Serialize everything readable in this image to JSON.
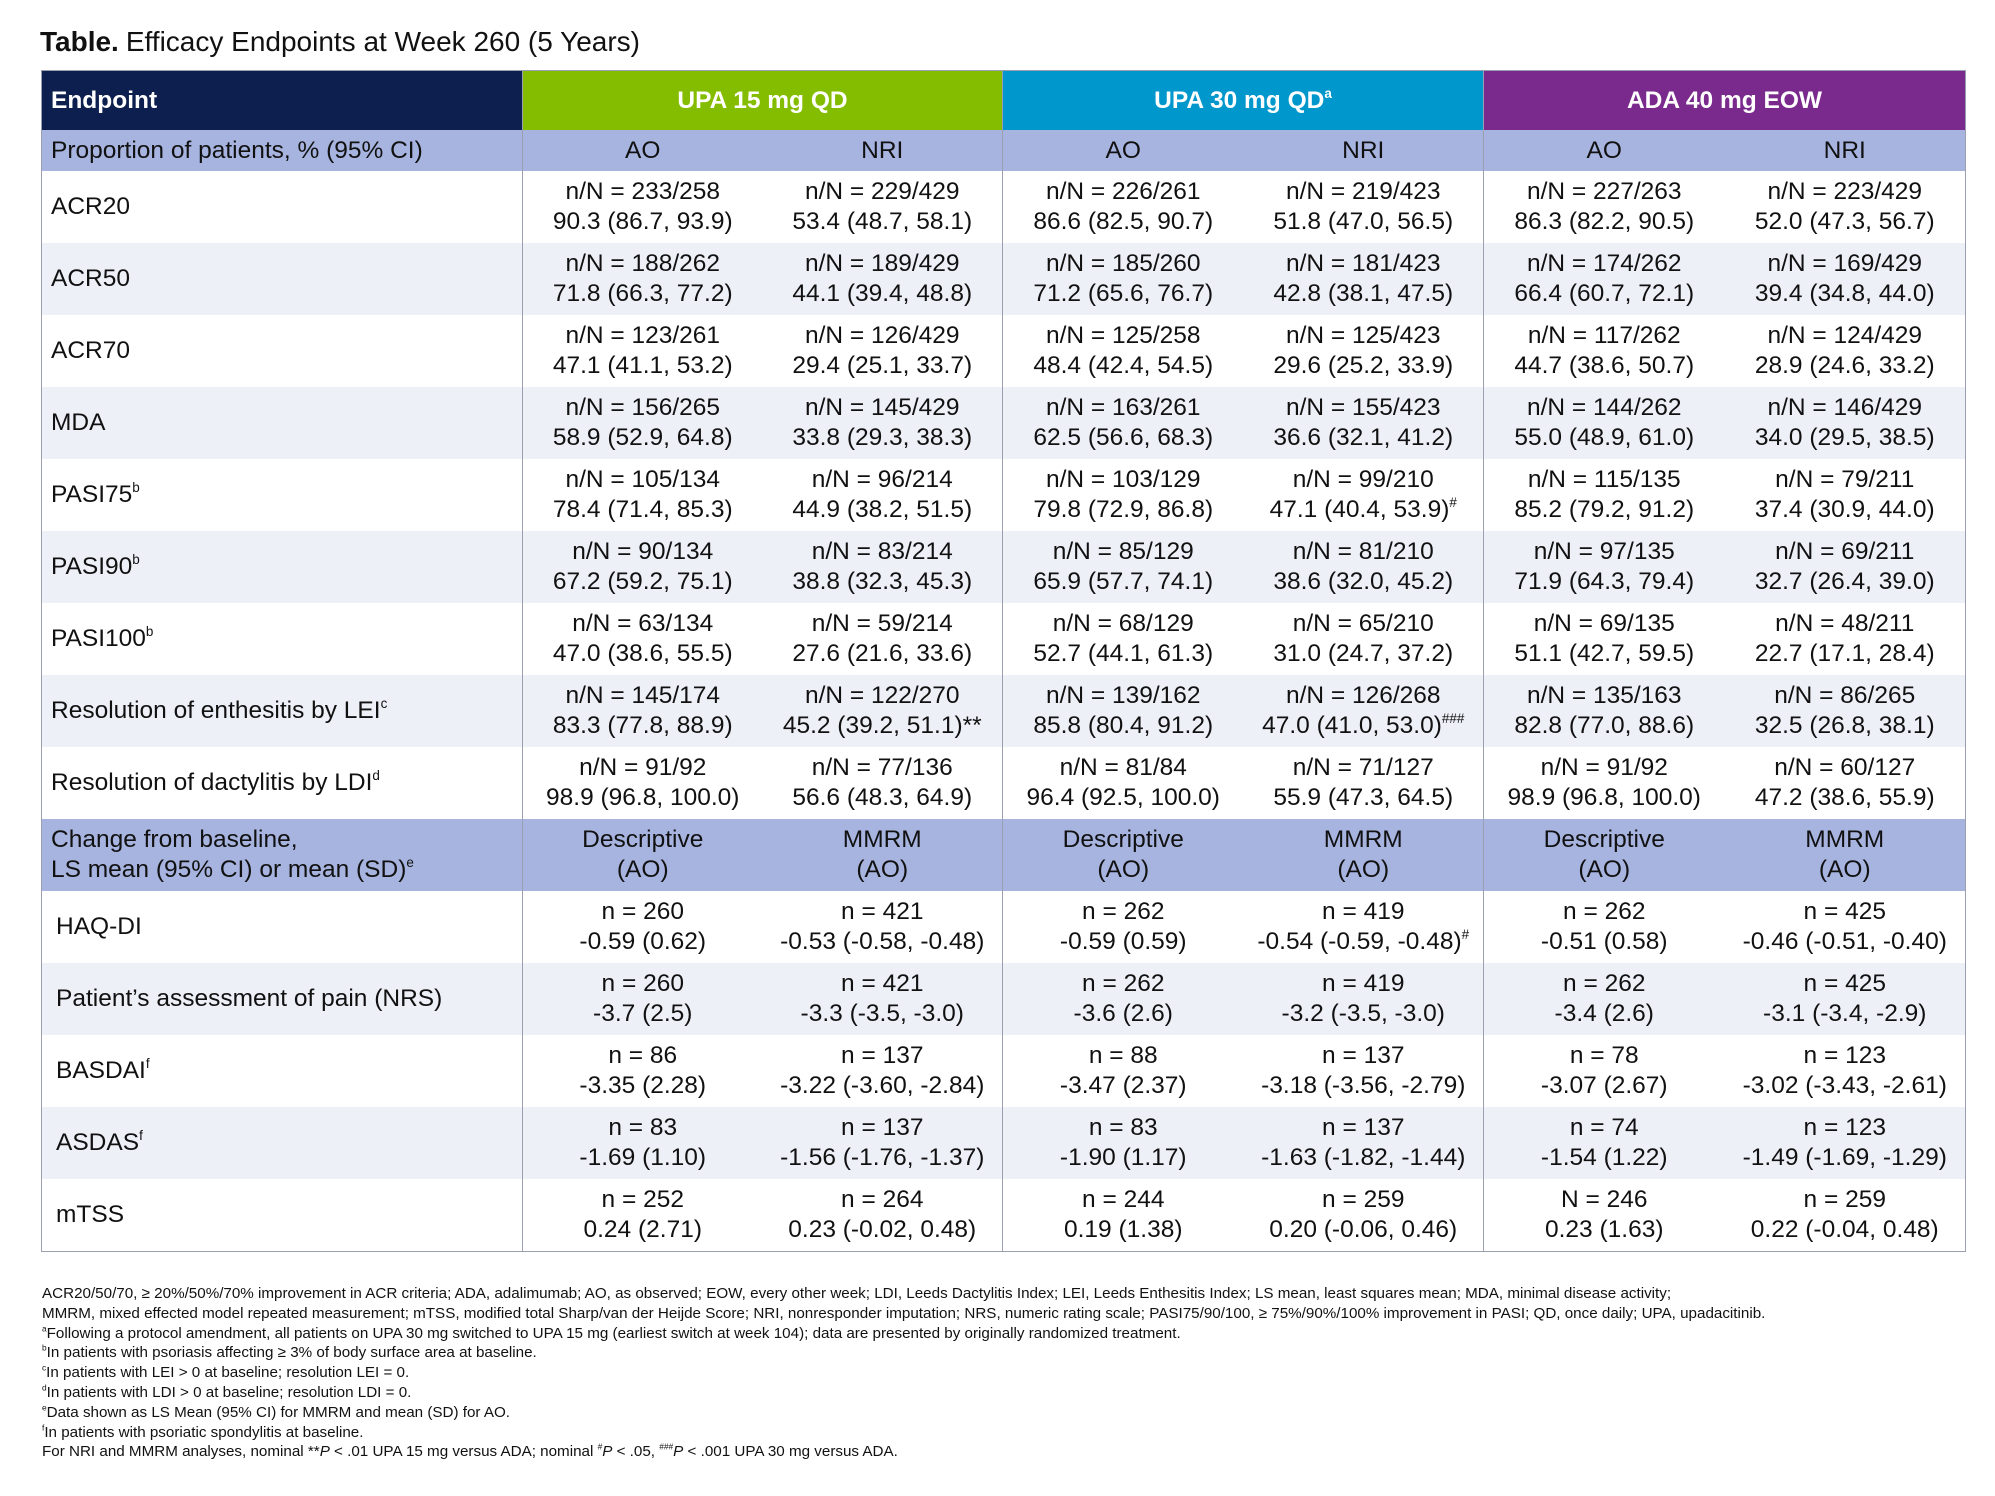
{
  "title": {
    "bold": "Table.",
    "text": "Efficacy Endpoints at Week 260 (5 Years)"
  },
  "table": {
    "header": [
      {
        "text": "Endpoint",
        "color": "#0d1f4e"
      },
      {
        "text": "UPA 15 mg QD",
        "color": "#84bd00"
      },
      {
        "text": "UPA 30 mg QD",
        "sup": "a",
        "color": "#0097cc"
      },
      {
        "text": "ADA 40 mg EOW",
        "color": "#7a2a8c"
      }
    ],
    "sections": [
      {
        "label": [
          "Proportion of patients, % (95% CI)"
        ],
        "subheads": [
          [
            "AO"
          ],
          [
            "NRI"
          ],
          [
            "AO"
          ],
          [
            "NRI"
          ],
          [
            "AO"
          ],
          [
            "NRI"
          ]
        ],
        "rows": [
          {
            "label": "ACR20",
            "cells": [
              {
                "n": "n/N = 233/258",
                "v": "90.3 (86.7, 93.9)"
              },
              {
                "n": "n/N = 229/429",
                "v": "53.4 (48.7, 58.1)"
              },
              {
                "n": "n/N = 226/261",
                "v": "86.6 (82.5, 90.7)"
              },
              {
                "n": "n/N = 219/423",
                "v": "51.8 (47.0, 56.5)"
              },
              {
                "n": "n/N = 227/263",
                "v": "86.3 (82.2, 90.5)"
              },
              {
                "n": "n/N = 223/429",
                "v": "52.0 (47.3, 56.7)"
              }
            ]
          },
          {
            "label": "ACR50",
            "cells": [
              {
                "n": "n/N = 188/262",
                "v": "71.8 (66.3, 77.2)"
              },
              {
                "n": "n/N = 189/429",
                "v": "44.1 (39.4, 48.8)"
              },
              {
                "n": "n/N = 185/260",
                "v": "71.2 (65.6, 76.7)"
              },
              {
                "n": "n/N = 181/423",
                "v": "42.8 (38.1, 47.5)"
              },
              {
                "n": "n/N = 174/262",
                "v": "66.4 (60.7, 72.1)"
              },
              {
                "n": "n/N = 169/429",
                "v": "39.4 (34.8, 44.0)"
              }
            ]
          },
          {
            "label": "ACR70",
            "cells": [
              {
                "n": "n/N = 123/261",
                "v": "47.1 (41.1, 53.2)"
              },
              {
                "n": "n/N = 126/429",
                "v": "29.4 (25.1, 33.7)"
              },
              {
                "n": "n/N = 125/258",
                "v": "48.4 (42.4, 54.5)"
              },
              {
                "n": "n/N = 125/423",
                "v": "29.6 (25.2, 33.9)"
              },
              {
                "n": "n/N = 117/262",
                "v": "44.7 (38.6, 50.7)"
              },
              {
                "n": "n/N = 124/429",
                "v": "28.9 (24.6, 33.2)"
              }
            ]
          },
          {
            "label": "MDA",
            "cells": [
              {
                "n": "n/N = 156/265",
                "v": "58.9 (52.9, 64.8)"
              },
              {
                "n": "n/N = 145/429",
                "v": "33.8 (29.3, 38.3)"
              },
              {
                "n": "n/N = 163/261",
                "v": "62.5 (56.6, 68.3)"
              },
              {
                "n": "n/N = 155/423",
                "v": "36.6 (32.1, 41.2)"
              },
              {
                "n": "n/N = 144/262",
                "v": "55.0 (48.9, 61.0)"
              },
              {
                "n": "n/N = 146/429",
                "v": "34.0 (29.5, 38.5)"
              }
            ]
          },
          {
            "label": "PASI75",
            "sup": "b",
            "cells": [
              {
                "n": "n/N = 105/134",
                "v": "78.4 (71.4, 85.3)"
              },
              {
                "n": "n/N = 96/214",
                "v": "44.9 (38.2, 51.5)"
              },
              {
                "n": "n/N = 103/129",
                "v": "79.8 (72.9, 86.8)"
              },
              {
                "n": "n/N = 99/210",
                "v": "47.1 (40.4, 53.9)",
                "sup": "#"
              },
              {
                "n": "n/N = 115/135",
                "v": "85.2 (79.2, 91.2)"
              },
              {
                "n": "n/N = 79/211",
                "v": "37.4 (30.9, 44.0)"
              }
            ]
          },
          {
            "label": "PASI90",
            "sup": "b",
            "cells": [
              {
                "n": "n/N = 90/134",
                "v": "67.2 (59.2, 75.1)"
              },
              {
                "n": "n/N = 83/214",
                "v": "38.8 (32.3, 45.3)"
              },
              {
                "n": "n/N = 85/129",
                "v": "65.9 (57.7, 74.1)"
              },
              {
                "n": "n/N = 81/210",
                "v": "38.6 (32.0, 45.2)"
              },
              {
                "n": "n/N = 97/135",
                "v": "71.9 (64.3, 79.4)"
              },
              {
                "n": "n/N = 69/211",
                "v": "32.7 (26.4, 39.0)"
              }
            ]
          },
          {
            "label": "PASI100",
            "sup": "b",
            "cells": [
              {
                "n": "n/N = 63/134",
                "v": "47.0 (38.6, 55.5)"
              },
              {
                "n": "n/N = 59/214",
                "v": "27.6 (21.6, 33.6)"
              },
              {
                "n": "n/N = 68/129",
                "v": "52.7 (44.1, 61.3)"
              },
              {
                "n": "n/N = 65/210",
                "v": "31.0 (24.7, 37.2)"
              },
              {
                "n": "n/N = 69/135",
                "v": "51.1 (42.7, 59.5)"
              },
              {
                "n": "n/N = 48/211",
                "v": "22.7 (17.1, 28.4)"
              }
            ]
          },
          {
            "label": "Resolution of enthesitis by LEI",
            "sup": "c",
            "cells": [
              {
                "n": "n/N = 145/174",
                "v": "83.3 (77.8, 88.9)"
              },
              {
                "n": "n/N = 122/270",
                "v": "45.2 (39.2, 51.1)**"
              },
              {
                "n": "n/N = 139/162",
                "v": "85.8 (80.4, 91.2)"
              },
              {
                "n": "n/N = 126/268",
                "v": "47.0 (41.0, 53.0)",
                "sup": "###"
              },
              {
                "n": "n/N = 135/163",
                "v": "82.8 (77.0, 88.6)"
              },
              {
                "n": "n/N = 86/265",
                "v": "32.5 (26.8, 38.1)"
              }
            ]
          },
          {
            "label": "Resolution of dactylitis by LDI",
            "sup": "d",
            "cells": [
              {
                "n": "n/N = 91/92",
                "v": "98.9 (96.8, 100.0)"
              },
              {
                "n": "n/N = 77/136",
                "v": "56.6 (48.3, 64.9)"
              },
              {
                "n": "n/N = 81/84",
                "v": "96.4 (92.5, 100.0)"
              },
              {
                "n": "n/N = 71/127",
                "v": "55.9 (47.3, 64.5)"
              },
              {
                "n": "n/N = 91/92",
                "v": "98.9 (96.8, 100.0)"
              },
              {
                "n": "n/N = 60/127",
                "v": "47.2 (38.6, 55.9)"
              }
            ]
          }
        ]
      },
      {
        "label": [
          "Change from baseline,",
          "LS mean (95% CI) or mean (SD)"
        ],
        "label_sup": "e",
        "subheads": [
          [
            "Descriptive",
            "(AO)"
          ],
          [
            "MMRM",
            "(AO)"
          ],
          [
            "Descriptive",
            "(AO)"
          ],
          [
            "MMRM",
            "(AO)"
          ],
          [
            "Descriptive",
            "(AO)"
          ],
          [
            "MMRM",
            "(AO)"
          ]
        ],
        "rows": [
          {
            "label": "HAQ-DI",
            "cells": [
              {
                "n": "n = 260",
                "v": "-0.59 (0.62)"
              },
              {
                "n": "n = 421",
                "v": "-0.53 (-0.58, -0.48)"
              },
              {
                "n": "n = 262",
                "v": "-0.59 (0.59)"
              },
              {
                "n": "n = 419",
                "v": "-0.54 (-0.59, -0.48)",
                "sup": "#"
              },
              {
                "n": "n = 262",
                "v": "-0.51 (0.58)"
              },
              {
                "n": "n = 425",
                "v": "-0.46 (-0.51, -0.40)"
              }
            ]
          },
          {
            "label": "Patient’s assessment of pain (NRS)",
            "cells": [
              {
                "n": "n = 260",
                "v": "-3.7 (2.5)"
              },
              {
                "n": "n = 421",
                "v": "-3.3 (-3.5, -3.0)"
              },
              {
                "n": "n = 262",
                "v": "-3.6 (2.6)"
              },
              {
                "n": "n = 419",
                "v": "-3.2 (-3.5, -3.0)"
              },
              {
                "n": "n = 262",
                "v": "-3.4 (2.6)"
              },
              {
                "n": "n = 425",
                "v": "-3.1 (-3.4, -2.9)"
              }
            ]
          },
          {
            "label": "BASDAI",
            "sup": "f",
            "cells": [
              {
                "n": "n = 86",
                "v": "-3.35 (2.28)"
              },
              {
                "n": "n = 137",
                "v": "-3.22 (-3.60, -2.84)"
              },
              {
                "n": "n = 88",
                "v": "-3.47 (2.37)"
              },
              {
                "n": "n = 137",
                "v": "-3.18 (-3.56, -2.79)"
              },
              {
                "n": "n = 78",
                "v": "-3.07 (2.67)"
              },
              {
                "n": "n = 123",
                "v": "-3.02 (-3.43, -2.61)"
              }
            ]
          },
          {
            "label": "ASDAS",
            "sup": "f",
            "cells": [
              {
                "n": "n = 83",
                "v": "-1.69 (1.10)"
              },
              {
                "n": "n = 137",
                "v": "-1.56 (-1.76, -1.37)"
              },
              {
                "n": "n = 83",
                "v": "-1.90 (1.17)"
              },
              {
                "n": "n = 137",
                "v": "-1.63 (-1.82, -1.44)"
              },
              {
                "n": "n = 74",
                "v": "-1.54 (1.22)"
              },
              {
                "n": "n = 123",
                "v": "-1.49 (-1.69, -1.29)"
              }
            ]
          },
          {
            "label": "mTSS",
            "cells": [
              {
                "n": "n = 252",
                "v": "0.24 (2.71)"
              },
              {
                "n": "n = 264",
                "v": "0.23 (-0.02, 0.48)"
              },
              {
                "n": "n = 244",
                "v": "0.19 (1.38)"
              },
              {
                "n": "n = 259",
                "v": "0.20 (-0.06, 0.46)"
              },
              {
                "n": "N = 246",
                "v": "0.23 (1.63)"
              },
              {
                "n": "n = 259",
                "v": "0.22 (-0.04, 0.48)"
              }
            ]
          }
        ]
      }
    ]
  },
  "footnotes": [
    {
      "text": "ACR20/50/70, ≥ 20%/50%/70% improvement in ACR criteria; ADA, adalimumab; AO, as observed; EOW, every other week; LDI, Leeds Dactylitis Index; LEI, Leeds Enthesitis Index; LS mean, least squares mean; MDA, minimal disease activity;"
    },
    {
      "text": "MMRM, mixed effected model repeated measurement; mTSS, modified total Sharp/van der Heijde Score; NRI, nonresponder imputation; NRS, numeric rating scale; PASI75/90/100, ≥ 75%/90%/100% improvement in PASI; QD, once daily; UPA, upadacitinib."
    },
    {
      "sup": "a",
      "text": "Following a protocol amendment, all patients on UPA 30 mg switched to UPA 15 mg (earliest switch at week 104); data are presented by originally randomized treatment."
    },
    {
      "sup": "b",
      "text": "In patients with psoriasis affecting ≥ 3% of body surface area at baseline."
    },
    {
      "sup": "c",
      "text": "In patients with LEI > 0 at baseline; resolution LEI = 0."
    },
    {
      "sup": "d",
      "text": "In patients with LDI > 0 at baseline; resolution LDI = 0."
    },
    {
      "sup": "e",
      "text": "Data shown as LS Mean (95% CI) for MMRM and mean (SD) for AO."
    },
    {
      "sup": "f",
      "text": "In patients with psoriatic spondylitis at baseline."
    },
    {
      "parts": [
        {
          "t": "For NRI and MMRM analyses, nominal **"
        },
        {
          "t": "P",
          "s": "i"
        },
        {
          "t": " < .01 UPA 15 mg versus ADA; nominal "
        },
        {
          "t": "#",
          "s": "sup"
        },
        {
          "t": "P",
          "s": "i"
        },
        {
          "t": " < .05, "
        },
        {
          "t": "###",
          "s": "sup"
        },
        {
          "t": "P",
          "s": "i"
        },
        {
          "t": " < .001 UPA 30 mg versus ADA."
        }
      ]
    }
  ]
}
